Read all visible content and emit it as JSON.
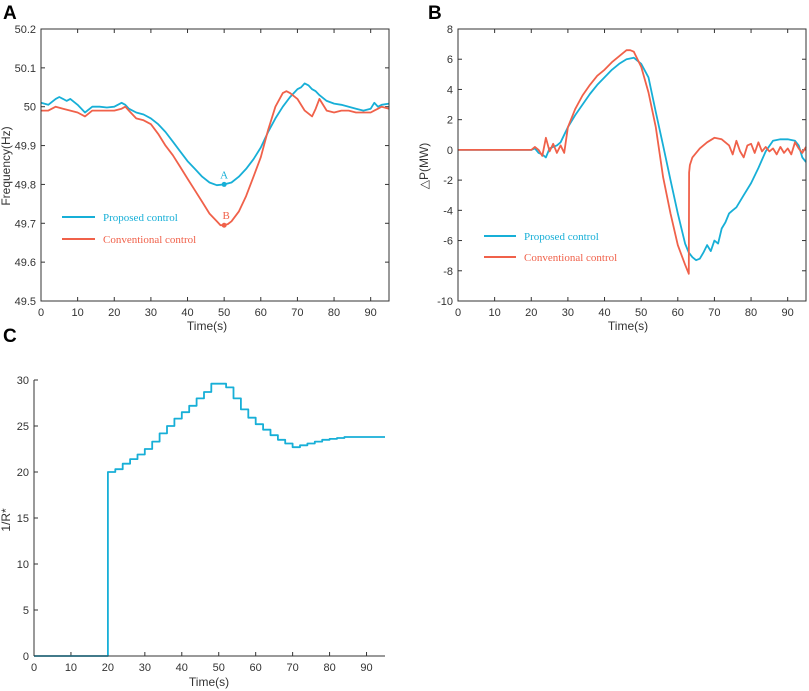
{
  "colors": {
    "proposed": "#17AFD7",
    "conventional": "#F0614A",
    "axis": "#333333",
    "text": "#333333"
  },
  "chart_data": [
    {
      "panel": "A",
      "type": "line",
      "xlabel": "Time(s)",
      "ylabel": "Frequency(Hz)",
      "xlim": [
        0,
        95
      ],
      "ylim": [
        49.5,
        50.2
      ],
      "xticks": [
        "0",
        "10",
        "20",
        "30",
        "40",
        "50",
        "60",
        "70",
        "80",
        "90"
      ],
      "yticks": [
        "49.5",
        "49.6",
        "49.7",
        "49.8",
        "49.9",
        "50",
        "50.1",
        "50.2"
      ],
      "legend_position": "middle-left",
      "series": [
        {
          "name": "Proposed control",
          "color": "#17AFD7",
          "x": [
            0,
            2,
            4,
            5,
            6,
            7,
            8,
            10,
            12,
            14,
            16,
            18,
            20,
            22,
            23,
            24,
            26,
            28,
            30,
            32,
            34,
            36,
            38,
            40,
            42,
            44,
            46,
            48,
            50,
            52,
            54,
            56,
            58,
            60,
            62,
            64,
            66,
            68,
            70,
            71,
            72,
            73,
            74,
            75,
            76,
            78,
            80,
            82,
            84,
            86,
            88,
            90,
            91,
            92,
            93,
            95
          ],
          "values": [
            50.01,
            50.005,
            50.02,
            50.025,
            50.02,
            50.015,
            50.02,
            50.005,
            49.985,
            50.0,
            50.0,
            49.998,
            50.0,
            50.01,
            50.005,
            49.995,
            49.985,
            49.98,
            49.97,
            49.955,
            49.935,
            49.91,
            49.885,
            49.86,
            49.84,
            49.82,
            49.805,
            49.798,
            49.8,
            49.805,
            49.82,
            49.84,
            49.865,
            49.895,
            49.935,
            49.97,
            50.0,
            50.025,
            50.045,
            50.05,
            50.06,
            50.055,
            50.045,
            50.04,
            50.03,
            50.015,
            50.008,
            50.005,
            50.0,
            49.995,
            49.99,
            49.995,
            50.01,
            50.0,
            50.005,
            50.008
          ]
        },
        {
          "name": "Conventional control",
          "color": "#F0614A",
          "x": [
            0,
            2,
            4,
            6,
            8,
            10,
            12,
            14,
            16,
            18,
            20,
            22,
            23,
            24,
            26,
            28,
            30,
            32,
            34,
            36,
            38,
            40,
            42,
            44,
            46,
            48,
            49,
            50,
            51,
            52,
            54,
            56,
            58,
            60,
            62,
            64,
            66,
            67,
            68,
            70,
            72,
            74,
            75,
            76,
            78,
            80,
            82,
            84,
            86,
            88,
            90,
            91,
            92,
            93,
            95
          ],
          "values": [
            49.99,
            49.99,
            50.0,
            49.995,
            49.99,
            49.985,
            49.975,
            49.99,
            49.99,
            49.99,
            49.99,
            49.995,
            50.0,
            49.99,
            49.97,
            49.965,
            49.955,
            49.93,
            49.9,
            49.875,
            49.845,
            49.815,
            49.785,
            49.755,
            49.725,
            49.705,
            49.695,
            49.695,
            49.698,
            49.705,
            49.73,
            49.77,
            49.82,
            49.87,
            49.94,
            50.0,
            50.035,
            50.04,
            50.035,
            50.02,
            49.99,
            49.975,
            49.995,
            50.02,
            49.99,
            49.985,
            49.99,
            49.99,
            49.985,
            49.985,
            49.985,
            49.99,
            49.995,
            50.0,
            49.995
          ]
        }
      ],
      "annotations": [
        {
          "text": "A",
          "x": 50,
          "y": 49.8,
          "color": "#17AFD7"
        },
        {
          "text": "B",
          "x": 50,
          "y": 49.695,
          "color": "#F0614A"
        }
      ]
    },
    {
      "panel": "B",
      "type": "line",
      "xlabel": "Time(s)",
      "ylabel": "△P(MW)",
      "xlim": [
        0,
        95
      ],
      "ylim": [
        -10,
        8
      ],
      "xticks": [
        "0",
        "10",
        "20",
        "30",
        "40",
        "50",
        "60",
        "70",
        "80",
        "90"
      ],
      "yticks": [
        "-10",
        "-8",
        "-6",
        "-4",
        "-2",
        "0",
        "2",
        "4",
        "6",
        "8"
      ],
      "legend_position": "lower-left",
      "series": [
        {
          "name": "Proposed control",
          "color": "#17AFD7",
          "x": [
            0,
            20,
            21,
            22,
            23,
            24,
            25,
            26,
            27,
            28,
            29,
            30,
            32,
            34,
            36,
            38,
            40,
            42,
            44,
            46,
            48,
            50,
            52,
            54,
            56,
            58,
            60,
            62,
            63,
            64,
            65,
            66,
            67,
            68,
            69,
            70,
            71,
            72,
            73,
            74,
            75,
            76,
            78,
            80,
            82,
            84,
            86,
            88,
            90,
            92,
            93,
            94,
            95
          ],
          "values": [
            0,
            0,
            0.1,
            -0.2,
            -0.3,
            -0.5,
            0.1,
            0.2,
            0.3,
            0.5,
            1.0,
            1.5,
            2.3,
            3.0,
            3.7,
            4.3,
            4.8,
            5.3,
            5.7,
            6.0,
            6.1,
            5.7,
            4.8,
            2.5,
            0.3,
            -2.0,
            -4.2,
            -6.2,
            -6.8,
            -7.1,
            -7.3,
            -7.2,
            -6.8,
            -6.3,
            -6.7,
            -6.0,
            -6.2,
            -5.2,
            -4.8,
            -4.2,
            -4.0,
            -3.8,
            -3.0,
            -2.2,
            -1.2,
            -0.1,
            0.6,
            0.7,
            0.7,
            0.6,
            0.3,
            -0.5,
            -0.8
          ]
        },
        {
          "name": "Conventional control",
          "color": "#F0614A",
          "x": [
            0,
            20,
            21,
            22,
            23,
            24,
            25,
            26,
            27,
            28,
            29,
            30,
            32,
            34,
            36,
            38,
            40,
            42,
            44,
            46,
            47,
            48,
            50,
            52,
            54,
            56,
            58,
            60,
            62,
            63,
            63.1,
            63.3,
            64,
            66,
            68,
            70,
            72,
            74,
            75,
            76,
            77,
            78,
            79,
            80,
            81,
            82,
            83,
            84,
            85,
            86,
            87,
            88,
            89,
            90,
            91,
            92,
            93,
            94,
            95
          ],
          "values": [
            0,
            0,
            0.2,
            0.0,
            -0.4,
            0.8,
            -0.1,
            0.4,
            -0.2,
            0.3,
            -0.2,
            1.5,
            2.7,
            3.6,
            4.3,
            4.9,
            5.3,
            5.8,
            6.2,
            6.6,
            6.6,
            6.5,
            5.5,
            3.8,
            1.5,
            -1.8,
            -4.2,
            -6.3,
            -7.6,
            -8.2,
            -1.5,
            -1.0,
            -0.5,
            0.1,
            0.5,
            0.8,
            0.7,
            0.3,
            -0.3,
            0.6,
            -0.1,
            -0.5,
            0.3,
            0.4,
            -0.2,
            0.5,
            -0.1,
            0.2,
            -0.1,
            0.1,
            -0.3,
            0.2,
            -0.2,
            0.1,
            -0.3,
            0.5,
            0.1,
            -0.2,
            0.2
          ]
        }
      ]
    },
    {
      "panel": "C",
      "type": "line",
      "xlabel": "Time(s)",
      "ylabel": "1/R*",
      "xlim": [
        0,
        95
      ],
      "ylim": [
        0,
        30
      ],
      "xticks": [
        "0",
        "10",
        "20",
        "30",
        "40",
        "50",
        "60",
        "70",
        "80",
        "90"
      ],
      "yticks": [
        "0",
        "5",
        "10",
        "15",
        "20",
        "25",
        "30"
      ],
      "step": true,
      "series": [
        {
          "name": "1/R*",
          "color": "#17AFD7",
          "x": [
            0,
            20,
            20,
            22,
            24,
            26,
            28,
            30,
            32,
            34,
            36,
            38,
            40,
            42,
            44,
            46,
            48,
            52,
            54,
            56,
            58,
            60,
            62,
            64,
            66,
            68,
            70,
            72,
            74,
            76,
            78,
            80,
            82,
            84,
            86,
            88,
            90,
            95
          ],
          "values": [
            0,
            0,
            20,
            20.3,
            20.9,
            21.4,
            21.9,
            22.5,
            23.3,
            24.2,
            25.0,
            25.8,
            26.5,
            27.2,
            28.0,
            28.7,
            29.6,
            29.2,
            28.0,
            26.8,
            25.9,
            25.2,
            24.6,
            24.0,
            23.5,
            23.1,
            22.7,
            22.9,
            23.1,
            23.3,
            23.5,
            23.6,
            23.7,
            23.8,
            23.8,
            23.8,
            23.8,
            23.8
          ]
        }
      ]
    }
  ],
  "panels": [
    {
      "letter": "A",
      "xlabel": "Time(s)",
      "ylabel": "Frequency(Hz)",
      "xticks": [
        "0",
        "10",
        "20",
        "30",
        "40",
        "50",
        "60",
        "70",
        "80",
        "90"
      ],
      "yticks": [
        "49.5",
        "49.6",
        "49.7",
        "49.8",
        "49.9",
        "50",
        "50.1",
        "50.2"
      ],
      "legend": [
        "Proposed control",
        "Conventional control"
      ],
      "annotations": [
        "A",
        "B"
      ]
    },
    {
      "letter": "B",
      "xlabel": "Time(s)",
      "ylabel": "△P(MW)",
      "xticks": [
        "0",
        "10",
        "20",
        "30",
        "40",
        "50",
        "60",
        "70",
        "80",
        "90"
      ],
      "yticks": [
        "-10",
        "-8",
        "-6",
        "-4",
        "-2",
        "0",
        "2",
        "4",
        "6",
        "8"
      ],
      "legend": [
        "Proposed control",
        "Conventional control"
      ]
    },
    {
      "letter": "C",
      "xlabel": "Time(s)",
      "ylabel": "1/R*",
      "xticks": [
        "0",
        "10",
        "20",
        "30",
        "40",
        "50",
        "60",
        "70",
        "80",
        "90"
      ],
      "yticks": [
        "0",
        "5",
        "10",
        "15",
        "20",
        "25",
        "30"
      ]
    }
  ]
}
